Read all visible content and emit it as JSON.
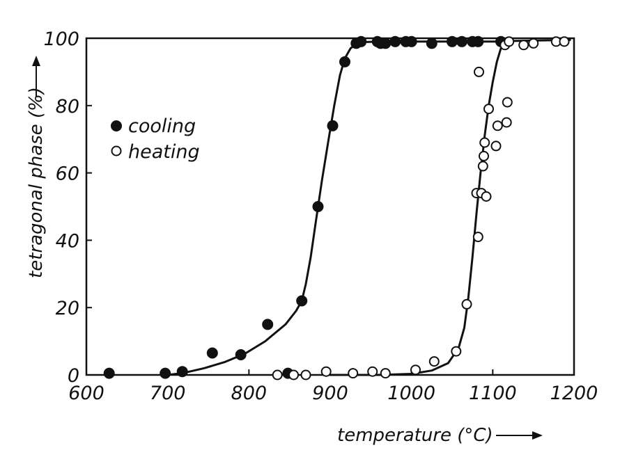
{
  "chart_data": {
    "type": "scatter",
    "xlabel": "temperature (°C)",
    "ylabel": "tetragonal phase (%)",
    "xlim": [
      600,
      1200
    ],
    "ylim": [
      0,
      100
    ],
    "x_ticks": [
      "600",
      "700",
      "800",
      "900",
      "1000",
      "1100",
      "1200"
    ],
    "y_ticks": [
      "0",
      "20",
      "40",
      "60",
      "80",
      "100"
    ],
    "grid": false,
    "legend_position": "left",
    "legend": [
      {
        "label": "cooling",
        "marker": "filled-circle"
      },
      {
        "label": "heating",
        "marker": "open-circle"
      }
    ],
    "series": [
      {
        "name": "cooling",
        "marker": "filled-circle",
        "points": [
          [
            628,
            0.5
          ],
          [
            697,
            0.5
          ],
          [
            718,
            1
          ],
          [
            755,
            6.5
          ],
          [
            790,
            6
          ],
          [
            823,
            15
          ],
          [
            848,
            0.5
          ],
          [
            865,
            22
          ],
          [
            885,
            50
          ],
          [
            903,
            74
          ],
          [
            918,
            93
          ],
          [
            932,
            98.5
          ],
          [
            938,
            99
          ],
          [
            958,
            99
          ],
          [
            962,
            98.5
          ],
          [
            968,
            98.5
          ],
          [
            980,
            99
          ],
          [
            993,
            99
          ],
          [
            1000,
            99
          ],
          [
            1025,
            98.5
          ],
          [
            1050,
            99
          ],
          [
            1062,
            99
          ],
          [
            1075,
            99
          ],
          [
            1082,
            99
          ],
          [
            1110,
            99
          ]
        ],
        "fit_curve": [
          [
            700,
            0
          ],
          [
            720,
            0.6
          ],
          [
            745,
            2
          ],
          [
            770,
            3.8
          ],
          [
            795,
            6.3
          ],
          [
            820,
            10
          ],
          [
            845,
            15
          ],
          [
            858,
            19
          ],
          [
            865,
            22
          ],
          [
            870,
            27
          ],
          [
            876,
            35
          ],
          [
            882,
            45
          ],
          [
            890,
            58
          ],
          [
            898,
            70
          ],
          [
            905,
            80
          ],
          [
            912,
            89
          ],
          [
            918,
            94
          ],
          [
            925,
            97
          ],
          [
            935,
            98.8
          ],
          [
            960,
            99
          ],
          [
            1000,
            99
          ],
          [
            1060,
            99
          ],
          [
            1112,
            99
          ]
        ]
      },
      {
        "name": "heating",
        "marker": "open-circle",
        "points": [
          [
            835,
            0
          ],
          [
            855,
            0
          ],
          [
            870,
            0
          ],
          [
            895,
            1
          ],
          [
            928,
            0.5
          ],
          [
            952,
            1
          ],
          [
            968,
            0.5
          ],
          [
            1005,
            1.5
          ],
          [
            1028,
            4
          ],
          [
            1055,
            7
          ],
          [
            1068,
            21
          ],
          [
            1082,
            41
          ],
          [
            1080,
            54
          ],
          [
            1086,
            54
          ],
          [
            1092,
            53
          ],
          [
            1088,
            62
          ],
          [
            1089,
            65
          ],
          [
            1090,
            69
          ],
          [
            1095,
            79
          ],
          [
            1104,
            68
          ],
          [
            1106,
            74
          ],
          [
            1117,
            75
          ],
          [
            1118,
            81
          ],
          [
            1083,
            90
          ],
          [
            1115,
            98
          ],
          [
            1120,
            99
          ],
          [
            1138,
            98
          ],
          [
            1150,
            98.5
          ],
          [
            1178,
            99
          ],
          [
            1188,
            99
          ]
        ],
        "fit_curve": [
          [
            900,
            0
          ],
          [
            960,
            0
          ],
          [
            1000,
            0.3
          ],
          [
            1025,
            1.3
          ],
          [
            1045,
            3.5
          ],
          [
            1058,
            8
          ],
          [
            1065,
            14
          ],
          [
            1070,
            23
          ],
          [
            1075,
            35
          ],
          [
            1080,
            48
          ],
          [
            1085,
            60
          ],
          [
            1090,
            71
          ],
          [
            1095,
            80
          ],
          [
            1100,
            87
          ],
          [
            1105,
            93
          ],
          [
            1110,
            97
          ],
          [
            1114,
            99
          ],
          [
            1125,
            99.2
          ],
          [
            1195,
            99.5
          ]
        ]
      }
    ]
  }
}
